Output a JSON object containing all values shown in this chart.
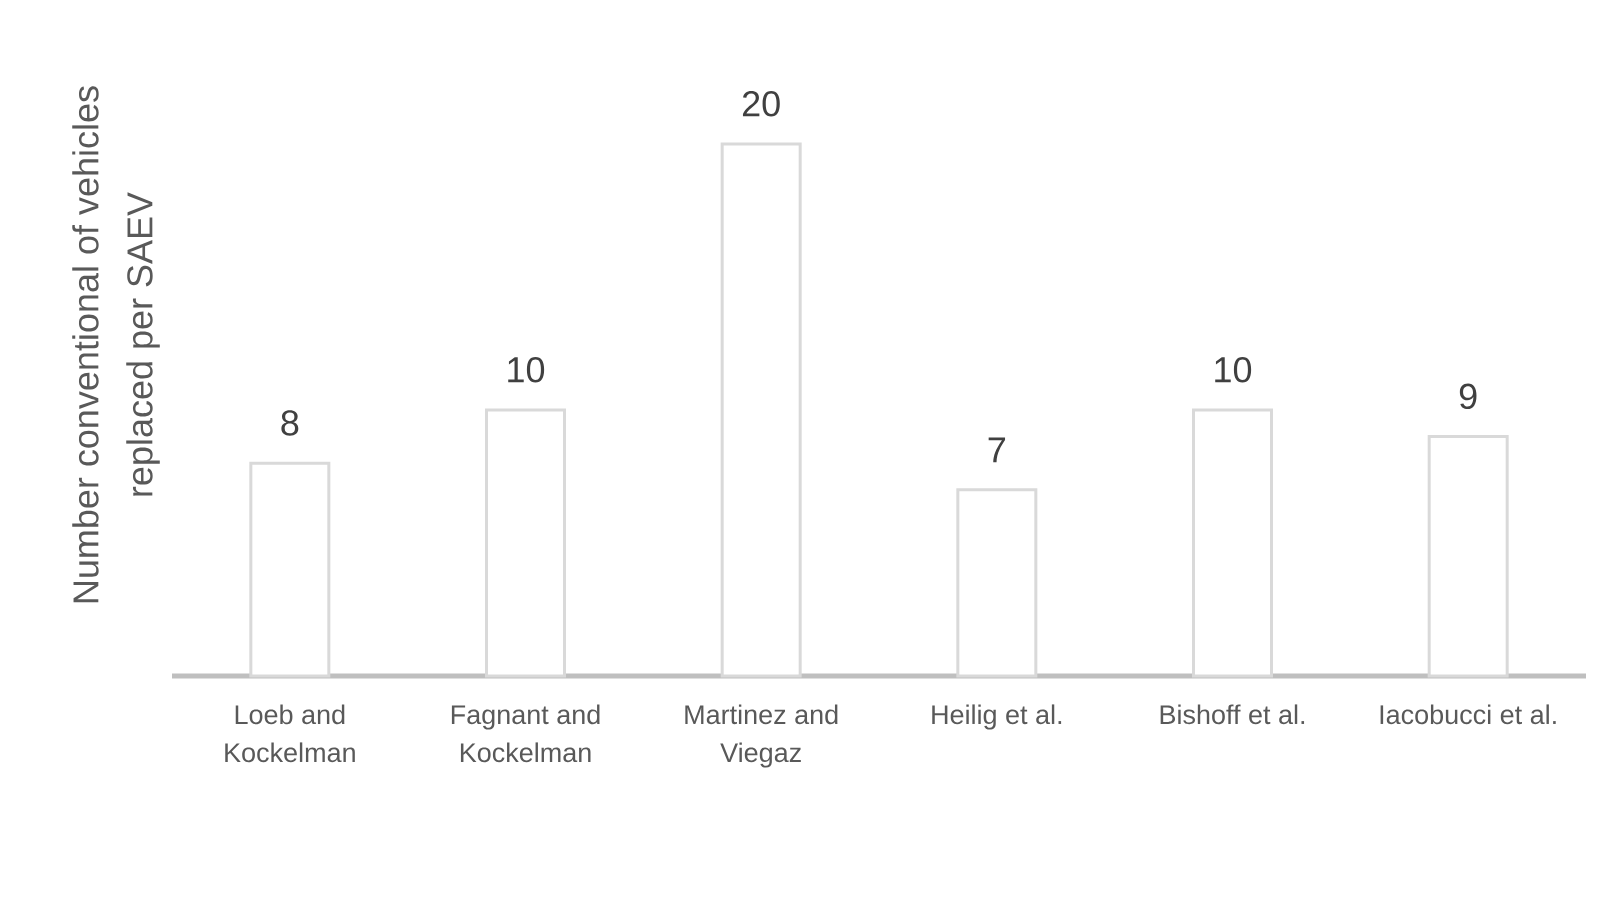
{
  "chart_data": {
    "type": "bar",
    "ylabel": "Number conventional of vehicles replaced per SAEV",
    "categories": [
      "Loeb and Kockelman",
      "Fagnant and Kockelman",
      "Martinez and Viegaz",
      "Heilig et al.",
      "Bishoff et al.",
      "Iacobucci et al."
    ],
    "values": [
      8,
      10,
      20,
      7,
      10,
      9
    ],
    "color": "#d9d9d9",
    "data_labels": true,
    "tick_labels": "x"
  }
}
